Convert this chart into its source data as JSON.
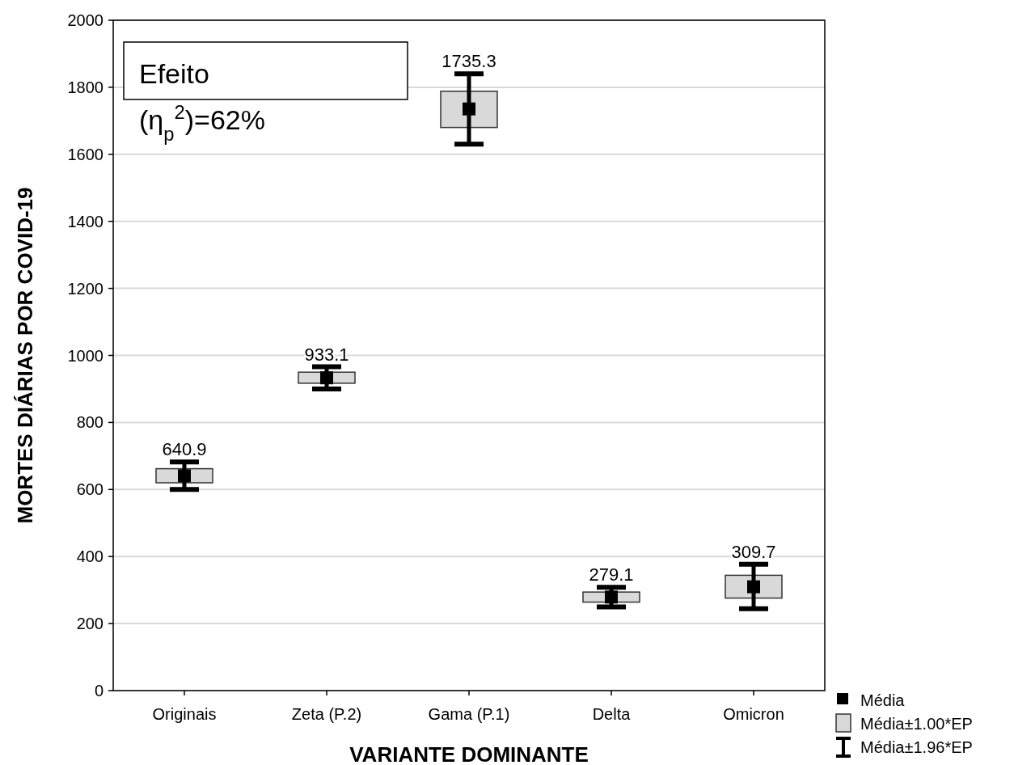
{
  "chart_data": {
    "type": "scatter",
    "xlabel": "VARIANTE DOMINANTE",
    "ylabel": "MORTES DIÁRIAS POR COVID-19",
    "categories": [
      "Originais",
      "Zeta (P.2)",
      "Gama (P.1)",
      "Delta",
      "Omicron"
    ],
    "ylim": [
      0,
      2000
    ],
    "yticks": [
      0,
      200,
      400,
      600,
      800,
      1000,
      1200,
      1400,
      1600,
      1800,
      2000
    ],
    "grid": "y",
    "legend": "bottom right",
    "annotations": [
      "Efeito (η$_{p}$$^{2}$)=62%",
      "Média±1.96*EP"
    ],
    "series": [
      {
        "name": "Média",
        "marker": "square",
        "color": "#000000",
        "values": [
          640.9,
          933.1,
          1735.3,
          279.1,
          309.7
        ],
        "value_labels": [
          "640.9",
          "933.1",
          "1735.3",
          "279.1",
          "309.7"
        ],
        "errors": [
          [
            600,
            682
          ],
          [
            900,
            966
          ],
          [
            1630,
            1840
          ],
          [
            250,
            308
          ],
          [
            244,
            377
          ]
        ]
      },
      {
        "name": "Média±1.00*EP",
        "type": "bar",
        "color": "#d9d9d9",
        "base": [
          620,
          917,
          1680,
          264,
          276
        ],
        "values": [
          42,
          33,
          108,
          30,
          68
        ]
      }
    ]
  }
}
